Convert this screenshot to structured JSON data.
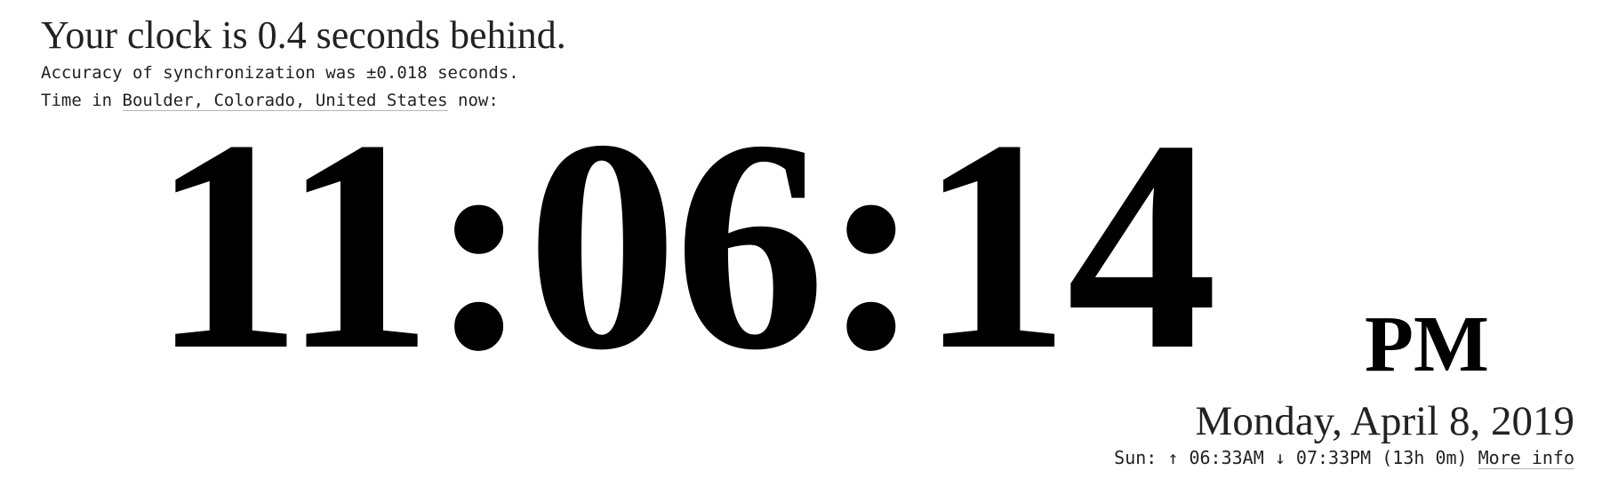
{
  "status": {
    "message": "Your clock is 0.4 seconds behind.",
    "accuracy": "Accuracy of synchronization was ±0.018 seconds."
  },
  "location": {
    "prefix": "Time in ",
    "place": "Boulder, Colorado, United States",
    "suffix": " now:"
  },
  "clock": {
    "time": "11:06:14",
    "ampm": "PM"
  },
  "date": "Monday, April 8, 2019",
  "sun": {
    "prefix": "Sun: ",
    "sunrise_symbol": "↑",
    "sunrise": "06:33AM",
    "sunset_symbol": "↓",
    "sunset": "07:33PM",
    "daylength": "(13h 0m)",
    "more_info": "More info"
  },
  "colors": {
    "text": "#222222",
    "clock": "#000000",
    "link_underline": "#b5b5b5",
    "background": "#ffffff"
  }
}
